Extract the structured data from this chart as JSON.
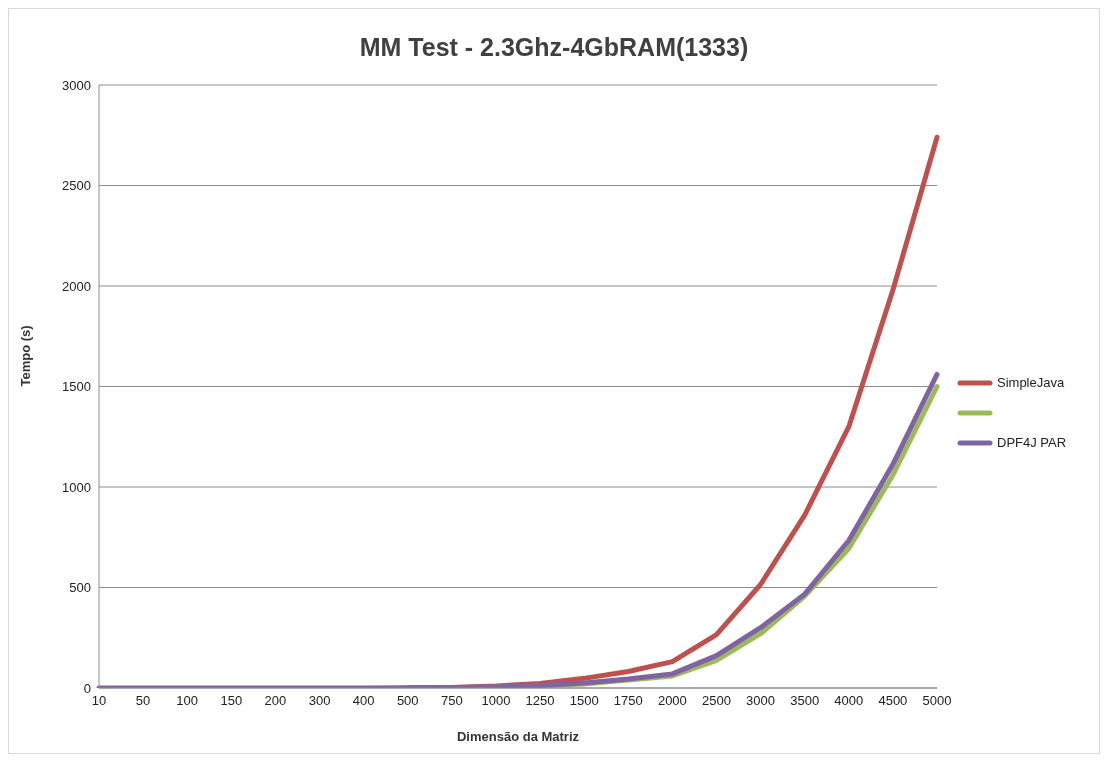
{
  "chart_data": {
    "type": "line",
    "title": "MM Test - 2.3Ghz-4GbRAM(1333)",
    "xlabel": "Dimensão da Matriz",
    "ylabel": "Tempo (s)",
    "categories": [
      "10",
      "50",
      "100",
      "150",
      "200",
      "300",
      "400",
      "500",
      "750",
      "1000",
      "1250",
      "1500",
      "1750",
      "2000",
      "2500",
      "3000",
      "3500",
      "4000",
      "4500",
      "5000"
    ],
    "series": [
      {
        "name": "SimpleJava",
        "color": "#c0504d",
        "values": [
          null,
          null,
          null,
          null,
          null,
          null,
          null,
          1,
          3,
          10,
          22,
          48,
          82,
          131,
          266,
          515,
          860,
          1300,
          1980,
          2740
        ]
      },
      {
        "color": "#9bbb59",
        "values": [
          null,
          null,
          null,
          null,
          null,
          null,
          null,
          null,
          null,
          4,
          10,
          20,
          40,
          60,
          137,
          270,
          457,
          694,
          1060,
          1500
        ]
      },
      {
        "name": "DPF4J PAR",
        "color": "#8064a2",
        "values": [
          0,
          0,
          0,
          0,
          0,
          0,
          0,
          1,
          2,
          5,
          12,
          25,
          45,
          70,
          161,
          300,
          467,
          734,
          1113,
          1560
        ]
      }
    ],
    "ylim": [
      0,
      3000
    ],
    "yticks": [
      0,
      500,
      1000,
      1500,
      2000,
      2500,
      3000
    ],
    "grid": "y",
    "legend": "right",
    "marker": "none",
    "line_style": "solid"
  }
}
